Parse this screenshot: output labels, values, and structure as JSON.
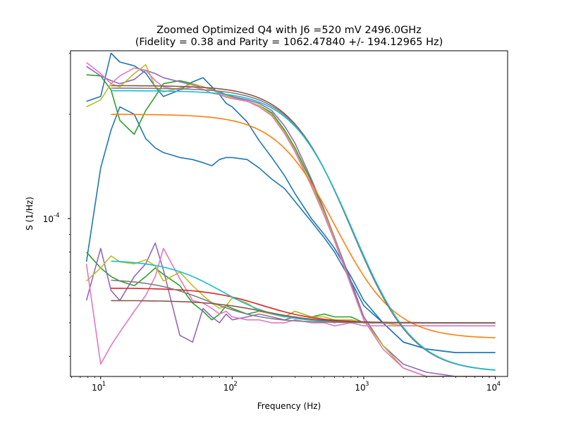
{
  "chart_data": {
    "type": "line",
    "title": "Zoomed Optimized Q4 with J6 =520 mV 2496.0GHz",
    "subtitle": "(Fidelity = 0.38 and Parity = 1062.47840 +/- 194.12965 Hz)",
    "xlabel": "Frequency (Hz)",
    "ylabel": "S (1/Hz)",
    "xscale": "log",
    "yscale": "log",
    "xlim": [
      5.9,
      12400
    ],
    "ylim": [
      3.5e-05,
      0.000305
    ],
    "x_ticks": [
      {
        "value": 10,
        "label": "10^1"
      },
      {
        "value": 100,
        "label": "10^2"
      },
      {
        "value": 1000,
        "label": "10^3"
      },
      {
        "value": 10000,
        "label": "10^4"
      }
    ],
    "y_ticks": [
      {
        "value": 0.0001,
        "label": "10^-4"
      }
    ],
    "grid": false,
    "legend": "none",
    "noisy_series": [
      {
        "color": "#1f77b4",
        "x": [
          7.8,
          10,
          12,
          14,
          18,
          22,
          26,
          30,
          40,
          50,
          60,
          70,
          80,
          90,
          100,
          130,
          160,
          200,
          250,
          300,
          400,
          500,
          600,
          800,
          1000,
          1400,
          2000,
          3000,
          5000,
          10000
        ],
        "y": [
          0.000218,
          0.000225,
          0.0003,
          0.000283,
          0.000276,
          0.000263,
          0.00024,
          0.000225,
          0.000235,
          0.000248,
          0.000255,
          0.00024,
          0.000228,
          0.000215,
          0.00021,
          0.00019,
          0.000168,
          0.00015,
          0.000133,
          0.000118,
          0.0001,
          9e-05,
          8.2e-05,
          6.8e-05,
          5.8e-05,
          5e-05,
          4.4e-05,
          4.2e-05,
          4.1e-05,
          4.1e-05
        ]
      },
      {
        "color": "#1f77b4",
        "x": [
          7.8,
          10,
          12,
          14,
          18,
          22,
          26,
          30,
          40,
          50,
          60,
          70,
          80,
          90,
          100,
          130,
          160,
          200,
          250,
          300,
          400,
          500,
          600,
          800,
          1000,
          1400,
          2000,
          3000,
          5000,
          10000
        ],
        "y": [
          7.5e-05,
          0.00014,
          0.00018,
          0.00021,
          0.0002,
          0.00017,
          0.00016,
          0.000155,
          0.00015,
          0.000148,
          0.000145,
          0.000142,
          0.000148,
          0.00015,
          0.00015,
          0.000148,
          0.00014,
          0.00013,
          0.000122,
          0.000112,
          9.8e-05,
          8.8e-05,
          8e-05,
          6.6e-05,
          5.6e-05,
          5e-05,
          4.4e-05,
          4.2e-05,
          4.1e-05,
          4.1e-05
        ]
      },
      {
        "color": "#2ca02c",
        "x": [
          7.8,
          10,
          12,
          14,
          18,
          22,
          26,
          30,
          40,
          50,
          60,
          70,
          80,
          90,
          100,
          130,
          160,
          200,
          250,
          300,
          400,
          500,
          600,
          800,
          1000,
          1400,
          2000,
          3000,
          5000,
          10000
        ],
        "y": [
          0.00026,
          0.000258,
          0.000235,
          0.000192,
          0.000175,
          0.000205,
          0.000225,
          0.000245,
          0.00025,
          0.000245,
          0.00024,
          0.000235,
          0.000232,
          0.000228,
          0.000225,
          0.000218,
          0.000212,
          0.000202,
          0.00018,
          0.00016,
          0.000128,
          0.000105,
          8.8e-05,
          6.5e-05,
          5.2e-05,
          4.3e-05,
          3.7e-05,
          3.5e-05,
          3.5e-05,
          3.5e-05
        ]
      },
      {
        "color": "#9467bd",
        "x": [
          7.8,
          10,
          12,
          14,
          18,
          22,
          26,
          30,
          40,
          50,
          60,
          70,
          80,
          90,
          100,
          130,
          160,
          200,
          250,
          300,
          400,
          500,
          600,
          800,
          1000,
          1400,
          2000,
          3000,
          5000,
          10000
        ],
        "y": [
          0.000275,
          0.000258,
          0.00025,
          0.000245,
          0.000252,
          0.000268,
          0.000262,
          0.000255,
          0.000248,
          0.000243,
          0.00024,
          0.000236,
          0.000232,
          0.000228,
          0.000225,
          0.00022,
          0.000215,
          0.000205,
          0.000185,
          0.000165,
          0.00013,
          0.000106,
          8.8e-05,
          6.6e-05,
          5.2e-05,
          4.3e-05,
          3.8e-05,
          3.6e-05,
          3.5e-05,
          3.5e-05
        ]
      },
      {
        "color": "#bcbd22",
        "x": [
          7.8,
          10,
          12,
          14,
          18,
          22,
          26,
          30,
          40,
          50,
          60,
          70,
          80,
          90,
          100,
          130,
          160,
          200,
          250,
          300,
          400,
          500,
          600,
          800,
          1000,
          1400,
          2000,
          3000,
          5000,
          10000
        ],
        "y": [
          0.00021,
          0.00022,
          0.000245,
          0.00024,
          0.000262,
          0.000278,
          0.00024,
          0.000232,
          0.000238,
          0.000245,
          0.00024,
          0.000235,
          0.00023,
          0.000226,
          0.000223,
          0.000218,
          0.000212,
          0.0002,
          0.000178,
          0.000158,
          0.000125,
          0.000104,
          8.7e-05,
          6.4e-05,
          5.1e-05,
          4.3e-05,
          3.7e-05,
          3.5e-05,
          3.5e-05,
          3.5e-05
        ]
      },
      {
        "color": "#e377c2",
        "x": [
          7.8,
          10,
          12,
          14,
          18,
          22,
          26,
          30,
          40,
          50,
          60,
          70,
          80,
          90,
          100,
          130,
          160,
          200,
          250,
          300,
          400,
          500,
          600,
          800,
          1000,
          1400,
          2000,
          3000,
          5000,
          10000
        ],
        "y": [
          0.000282,
          0.000262,
          0.000245,
          0.000258,
          0.000272,
          0.000268,
          0.00025,
          0.00024,
          0.000235,
          0.00024,
          0.000236,
          0.00023,
          0.000228,
          0.000224,
          0.000222,
          0.000218,
          0.00021,
          0.000198,
          0.000176,
          0.000156,
          0.000124,
          0.000102,
          8.6e-05,
          6.4e-05,
          5.1e-05,
          4.2e-05,
          3.7e-05,
          3.5e-05,
          3.5e-05,
          3.5e-05
        ]
      },
      {
        "color": "#2ca02c",
        "x": [
          7.8,
          10,
          12,
          14,
          18,
          22,
          26,
          30,
          40,
          50,
          60,
          70,
          80,
          90,
          100,
          130,
          160,
          200,
          250,
          300,
          400,
          500,
          600,
          800,
          1000,
          1400,
          2000,
          3000,
          5000,
          10000
        ],
        "y": [
          8e-05,
          7.2e-05,
          6.8e-05,
          6.6e-05,
          6.4e-05,
          6.8e-05,
          7.2e-05,
          6.9e-05,
          6.4e-05,
          5.7e-05,
          5.4e-05,
          5.1e-05,
          5.3e-05,
          5.6e-05,
          5.5e-05,
          5.3e-05,
          5.4e-05,
          5.3e-05,
          5.2e-05,
          5.4e-05,
          5.2e-05,
          5.3e-05,
          5.2e-05,
          5.2e-05,
          5e-05,
          5e-05,
          5e-05,
          5e-05,
          5e-05,
          5e-05
        ]
      },
      {
        "color": "#9467bd",
        "x": [
          7.8,
          10,
          12,
          14,
          18,
          22,
          26,
          30,
          40,
          50,
          60,
          70,
          80,
          90,
          100,
          130,
          160,
          200,
          250,
          300,
          400,
          500,
          600,
          800,
          1000,
          1400,
          2000,
          3000,
          5000,
          10000
        ],
        "y": [
          5.8e-05,
          8.2e-05,
          6.2e-05,
          5.8e-05,
          6.8e-05,
          7.4e-05,
          8.5e-05,
          7.1e-05,
          4.6e-05,
          4.4e-05,
          5.5e-05,
          5.2e-05,
          5e-05,
          5.3e-05,
          5.1e-05,
          5.2e-05,
          5.3e-05,
          5.2e-05,
          5.1e-05,
          5.2e-05,
          5.1e-05,
          5.1e-05,
          5e-05,
          5.1e-05,
          5e-05,
          5e-05,
          5e-05,
          5e-05,
          5e-05,
          5e-05
        ]
      },
      {
        "color": "#bcbd22",
        "x": [
          7.8,
          10,
          12,
          14,
          18,
          22,
          26,
          30,
          40,
          50,
          60,
          70,
          80,
          90,
          100,
          130,
          160,
          200,
          250,
          300,
          400,
          500,
          600,
          800,
          1000,
          1400,
          2000,
          3000,
          5000,
          10000
        ],
        "y": [
          6.6e-05,
          7.2e-05,
          7.8e-05,
          7.5e-05,
          7.4e-05,
          7.6e-05,
          7.3e-05,
          6.6e-05,
          7e-05,
          6.4e-05,
          6e-05,
          5.7e-05,
          5.5e-05,
          5.6e-05,
          5.9e-05,
          5.7e-05,
          5.4e-05,
          5.3e-05,
          5.2e-05,
          5.4e-05,
          5.2e-05,
          5.2e-05,
          5.1e-05,
          5.1e-05,
          5e-05,
          5e-05,
          4.9e-05,
          4.9e-05,
          4.9e-05,
          4.9e-05
        ]
      },
      {
        "color": "#e377c2",
        "x": [
          7.8,
          10,
          12,
          14,
          18,
          22,
          26,
          30,
          40,
          50,
          60,
          70,
          80,
          90,
          100,
          130,
          160,
          200,
          250,
          300,
          400,
          500,
          600,
          800,
          1000,
          1400,
          2000,
          3000,
          5000,
          10000
        ],
        "y": [
          7.4e-05,
          3.8e-05,
          4.3e-05,
          4.7e-05,
          5.4e-05,
          6e-05,
          6.8e-05,
          8.2e-05,
          6.7e-05,
          5.8e-05,
          5.7e-05,
          5.5e-05,
          5.3e-05,
          5.4e-05,
          5.2e-05,
          5.1e-05,
          5.1e-05,
          5e-05,
          5e-05,
          5.1e-05,
          5e-05,
          5e-05,
          4.9e-05,
          5e-05,
          4.9e-05,
          4.9e-05,
          4.9e-05,
          4.9e-05,
          4.9e-05,
          4.9e-05
        ]
      }
    ],
    "fit_series": [
      {
        "color": "#ff7f0e",
        "low_f_level": 0.0002,
        "high_f_level": 4.5e-05,
        "corner_hz": 420,
        "x_start": 12
      },
      {
        "color": "#8c564b",
        "low_f_level": 0.000242,
        "high_f_level": 3.6e-05,
        "corner_hz": 500,
        "x_start": 12
      },
      {
        "color": "#7f7f7f",
        "low_f_level": 0.000238,
        "high_f_level": 3.6e-05,
        "corner_hz": 510,
        "x_start": 12
      },
      {
        "color": "#17becf",
        "low_f_level": 0.000234,
        "high_f_level": 3.6e-05,
        "corner_hz": 520,
        "x_start": 12
      },
      {
        "color": "#d62728",
        "low_f_level": 6.3e-05,
        "high_f_level": 5e-05,
        "corner_hz": 160,
        "x_start": 12
      },
      {
        "color": "#17becf",
        "low_f_level": 7.6e-05,
        "high_f_level": 5e-05,
        "corner_hz": 75,
        "x_start": 12
      },
      {
        "color": "#7f7f7f",
        "low_f_level": 6.7e-05,
        "high_f_level": 5e-05,
        "corner_hz": 60,
        "x_start": 12
      },
      {
        "color": "#8c564b",
        "low_f_level": 5.8e-05,
        "high_f_level": 5e-05,
        "corner_hz": 170,
        "x_start": 12
      }
    ]
  }
}
